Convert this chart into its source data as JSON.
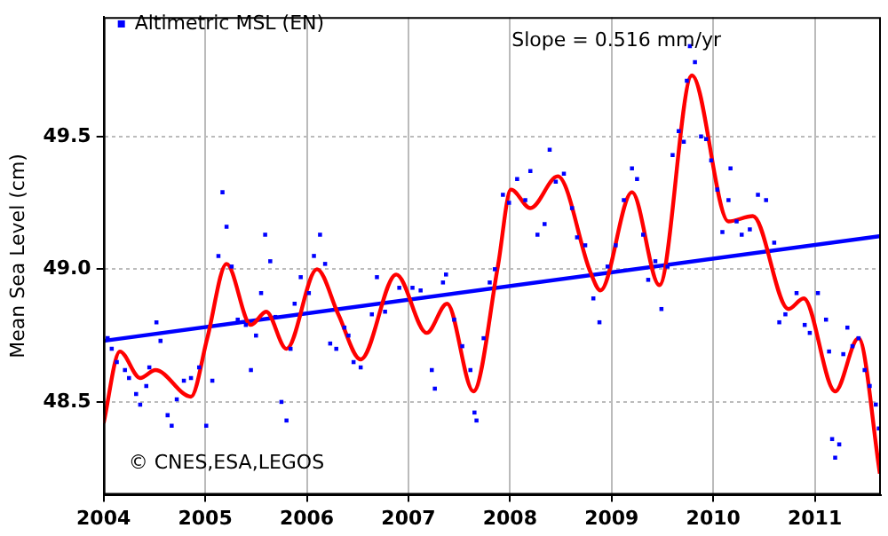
{
  "chart_data": {
    "type": "scatter",
    "ylabel": "Mean Sea Level (cm)",
    "xlim": [
      2004,
      2011.65
    ],
    "xticks": [
      2004,
      2005,
      2006,
      2007,
      2008,
      2009,
      2010,
      2011
    ],
    "ylim": [
      48.15,
      49.95
    ],
    "yticks": [
      {
        "value": 48.5,
        "label": "48.5"
      },
      {
        "value": 49,
        "label": "49.0"
      },
      {
        "value": 49.5,
        "label": "49.5"
      }
    ],
    "grid": true,
    "legend": "top left",
    "marker": "square",
    "annotations": [
      "Slope = 0.516 mm/yr",
      "© CNES,ESA,LEGOS"
    ],
    "series": [
      {
        "name": "Altimetric MSL (EN)",
        "color": "#0000ff",
        "x": [
          2004.04,
          2004.08,
          2004.13,
          2004.21,
          2004.25,
          2004.32,
          2004.36,
          2004.42,
          2004.45,
          2004.52,
          2004.56,
          2004.63,
          2004.67,
          2004.72,
          2004.79,
          2004.86,
          2004.94,
          2005.01,
          2005.07,
          2005.13,
          2005.17,
          2005.21,
          2005.26,
          2005.32,
          2005.4,
          2005.45,
          2005.5,
          2005.55,
          2005.59,
          2005.64,
          2005.69,
          2005.75,
          2005.8,
          2005.84,
          2005.88,
          2005.94,
          2006.02,
          2006.07,
          2006.13,
          2006.18,
          2006.23,
          2006.29,
          2006.37,
          2006.41,
          2006.46,
          2006.53,
          2006.64,
          2006.69,
          2006.77,
          2006.91,
          2007.04,
          2007.12,
          2007.23,
          2007.26,
          2007.34,
          2007.37,
          2007.45,
          2007.53,
          2007.61,
          2007.65,
          2007.67,
          2007.74,
          2007.8,
          2007.85,
          2007.93,
          2007.99,
          2008.07,
          2008.15,
          2008.2,
          2008.27,
          2008.34,
          2008.39,
          2008.45,
          2008.53,
          2008.61,
          2008.66,
          2008.74,
          2008.82,
          2008.88,
          2008.96,
          2009.04,
          2009.12,
          2009.2,
          2009.25,
          2009.31,
          2009.36,
          2009.43,
          2009.49,
          2009.55,
          2009.6,
          2009.66,
          2009.71,
          2009.74,
          2009.77,
          2009.82,
          2009.88,
          2009.93,
          2009.98,
          2010.04,
          2010.09,
          2010.15,
          2010.17,
          2010.23,
          2010.28,
          2010.36,
          2010.44,
          2010.52,
          2010.6,
          2010.65,
          2010.71,
          2010.82,
          2010.9,
          2010.95,
          2011.03,
          2011.11,
          2011.14,
          2011.17,
          2011.2,
          2011.24,
          2011.28,
          2011.32,
          2011.37,
          2011.43,
          2011.49,
          2011.54,
          2011.6,
          2011.63
        ],
        "values": [
          48.74,
          48.7,
          48.65,
          48.62,
          48.59,
          48.53,
          48.49,
          48.56,
          48.63,
          48.8,
          48.73,
          48.45,
          48.41,
          48.51,
          48.58,
          48.59,
          48.63,
          48.41,
          48.58,
          49.05,
          49.29,
          49.16,
          49.01,
          48.81,
          48.79,
          48.62,
          48.75,
          48.91,
          49.13,
          49.03,
          48.82,
          48.5,
          48.43,
          48.7,
          48.87,
          48.97,
          48.91,
          49.05,
          49.13,
          49.02,
          48.72,
          48.7,
          48.78,
          48.75,
          48.65,
          48.63,
          48.83,
          48.97,
          48.84,
          48.93,
          48.93,
          48.92,
          48.62,
          48.55,
          48.95,
          48.98,
          48.81,
          48.71,
          48.62,
          48.46,
          48.43,
          48.74,
          48.95,
          49.0,
          49.28,
          49.25,
          49.34,
          49.26,
          49.37,
          49.13,
          49.17,
          49.45,
          49.33,
          49.36,
          49.23,
          49.12,
          49.09,
          48.89,
          48.8,
          49.01,
          49.09,
          49.26,
          49.38,
          49.34,
          49.13,
          48.96,
          49.03,
          48.85,
          49.01,
          49.43,
          49.52,
          49.48,
          49.71,
          49.84,
          49.78,
          49.5,
          49.49,
          49.41,
          49.3,
          49.14,
          49.26,
          49.38,
          49.18,
          49.13,
          49.15,
          49.28,
          49.26,
          49.1,
          48.8,
          48.83,
          48.91,
          48.79,
          48.76,
          48.91,
          48.81,
          48.69,
          48.36,
          48.29,
          48.34,
          48.68,
          48.78,
          48.71,
          48.74,
          48.62,
          48.56,
          48.49,
          48.4
        ]
      },
      {
        "color": "#ff0000",
        "type": "line",
        "marker": "none",
        "x": [
          2004.0,
          2004.16,
          2004.36,
          2004.51,
          2004.86,
          2005.02,
          2005.21,
          2005.45,
          2005.6,
          2005.8,
          2006.1,
          2006.31,
          2006.53,
          2006.88,
          2007.18,
          2007.38,
          2007.64,
          2007.88,
          2008.01,
          2008.2,
          2008.47,
          2008.79,
          2008.89,
          2009.2,
          2009.47,
          2009.79,
          2010.15,
          2010.39,
          2010.74,
          2010.89,
          2011.2,
          2011.43,
          2011.64
        ],
        "values": [
          48.42,
          48.69,
          48.59,
          48.62,
          48.52,
          48.74,
          49.02,
          48.79,
          48.84,
          48.7,
          49.0,
          48.83,
          48.66,
          48.98,
          48.76,
          48.87,
          48.54,
          49.01,
          49.3,
          49.23,
          49.35,
          48.99,
          48.92,
          49.29,
          48.94,
          49.73,
          49.18,
          49.2,
          48.85,
          48.89,
          48.54,
          48.74,
          48.23
        ]
      },
      {
        "color": "#0000ff",
        "type": "line",
        "marker": "none",
        "x": [
          2004,
          2011.65
        ],
        "values": [
          48.73,
          49.125
        ]
      }
    ]
  }
}
